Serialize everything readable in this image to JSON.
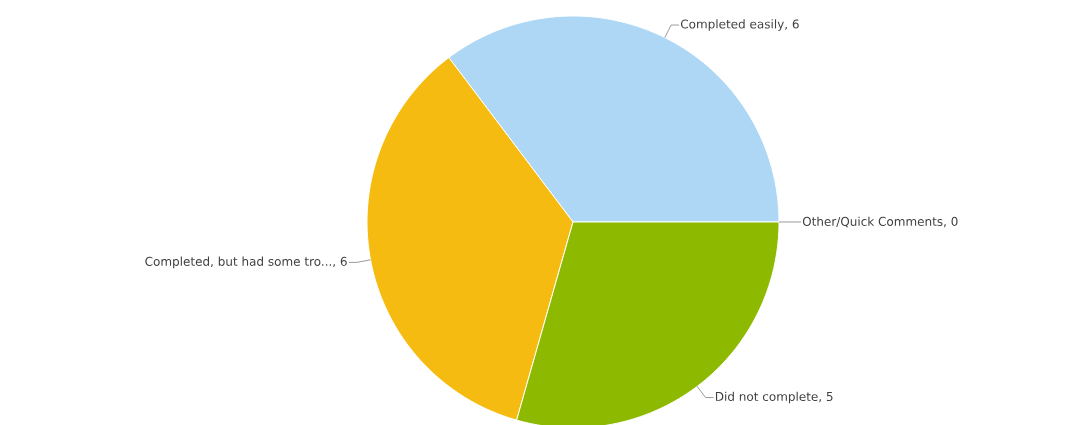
{
  "chart_data": {
    "type": "pie",
    "categories": [
      "Completed easily",
      "Completed, but had some tro...",
      "Did not complete",
      "Other/Quick Comments"
    ],
    "values": [
      6,
      6,
      5,
      0
    ],
    "colors": [
      "#aed6f5",
      "#f5bb10",
      "#8dba00",
      "#d9d9d9"
    ],
    "value_labels": [
      ", 6",
      ", 6",
      ", 5",
      ", 0"
    ]
  }
}
